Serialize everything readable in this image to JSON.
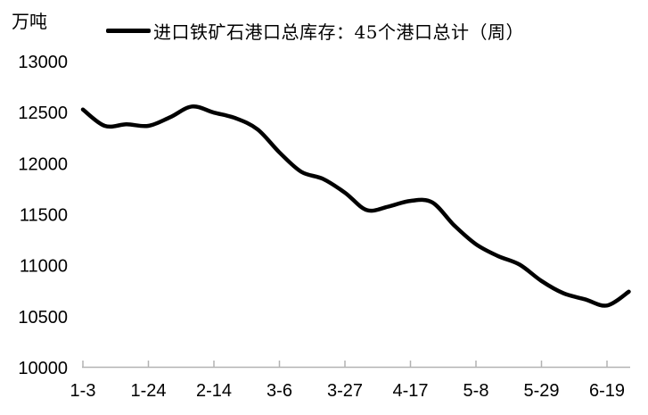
{
  "chart_data": {
    "type": "line",
    "unit_label": "万吨",
    "legend": "进口铁矿石港口总库存：45个港口总计（周）",
    "x": [
      "1-3",
      "1-10",
      "1-17",
      "1-24",
      "1-31",
      "2-7",
      "2-14",
      "2-21",
      "2-28",
      "3-6",
      "3-13",
      "3-20",
      "3-27",
      "4-3",
      "4-10",
      "4-17",
      "4-24",
      "5-1",
      "5-8",
      "5-15",
      "5-22",
      "5-29",
      "6-5",
      "6-12",
      "6-19",
      "6-26"
    ],
    "values": [
      12530,
      12370,
      12385,
      12370,
      12455,
      12560,
      12500,
      12445,
      12335,
      12110,
      11920,
      11850,
      11715,
      11545,
      11580,
      11635,
      11620,
      11395,
      11210,
      11095,
      11010,
      10850,
      10730,
      10670,
      10610,
      10745
    ],
    "x_tick_step": 3,
    "x_tick_labels": [
      "1-3",
      "1-24",
      "2-14",
      "3-6",
      "3-27",
      "4-17",
      "5-8",
      "5-29",
      "6-19"
    ],
    "y_ticks": [
      10000,
      10500,
      11000,
      11500,
      12000,
      12500,
      13000
    ],
    "ylim": [
      10000,
      13000
    ],
    "grid": false,
    "legend_position": "top",
    "line_color": "#000000",
    "axis_color": "#b3b3b3",
    "text_color": "#000000"
  }
}
